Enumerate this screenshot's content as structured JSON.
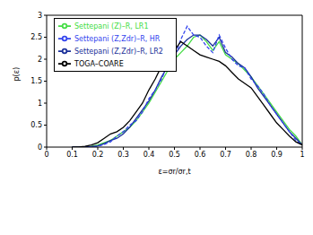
{
  "chart_data": {
    "type": "line",
    "x_label": "ε=σr/σr,t",
    "y_label": "p(ε)",
    "x": [
      0.1,
      0.125,
      0.15,
      0.175,
      0.2,
      0.225,
      0.25,
      0.275,
      0.3,
      0.325,
      0.35,
      0.375,
      0.4,
      0.425,
      0.45,
      0.475,
      0.5,
      0.525,
      0.55,
      0.575,
      0.6,
      0.625,
      0.65,
      0.675,
      0.7,
      0.725,
      0.75,
      0.775,
      0.8,
      0.825,
      0.85,
      0.875,
      0.9,
      0.925,
      0.95,
      0.975,
      1.0
    ],
    "series": [
      {
        "name": "Settepani (Z)–R, LR1",
        "color": "#44dd44",
        "line_style": "solid",
        "values": [
          0,
          0,
          0,
          0.02,
          0.05,
          0.1,
          0.15,
          0.25,
          0.35,
          0.45,
          0.6,
          0.8,
          1.0,
          1.25,
          1.5,
          1.75,
          2.0,
          2.15,
          2.3,
          2.5,
          2.55,
          2.4,
          2.2,
          2.4,
          2.1,
          2.0,
          1.9,
          1.75,
          1.6,
          1.4,
          1.2,
          1.0,
          0.8,
          0.6,
          0.4,
          0.25,
          0.05
        ]
      },
      {
        "name": "Settepani (Z,Zdr)–R, LR2",
        "color": "#1a2f99",
        "line_style": "solid",
        "values": [
          0,
          0,
          0,
          0.01,
          0.03,
          0.08,
          0.15,
          0.2,
          0.3,
          0.45,
          0.65,
          0.85,
          1.05,
          1.3,
          1.6,
          1.85,
          2.1,
          2.3,
          2.45,
          2.55,
          2.55,
          2.45,
          2.3,
          2.5,
          2.15,
          2.05,
          1.9,
          1.8,
          1.6,
          1.35,
          1.15,
          0.95,
          0.75,
          0.55,
          0.35,
          0.2,
          0.05
        ]
      },
      {
        "name": "Settepani (Z,Zdr)–R, HR",
        "color": "#3344ee",
        "line_style": "dashed",
        "values": [
          0,
          0,
          0,
          0,
          0.02,
          0.06,
          0.12,
          0.25,
          0.35,
          0.5,
          0.6,
          0.8,
          1.1,
          1.3,
          1.55,
          1.9,
          2.05,
          2.45,
          2.75,
          2.55,
          2.5,
          2.3,
          2.15,
          2.55,
          2.25,
          2.0,
          1.85,
          1.8,
          1.55,
          1.4,
          1.2,
          0.95,
          0.75,
          0.55,
          0.35,
          0.15,
          0.05
        ]
      },
      {
        "name": "TOGA–COARE",
        "color": "#000000",
        "line_style": "solid",
        "values": [
          0,
          0,
          0.02,
          0.05,
          0.1,
          0.2,
          0.3,
          0.35,
          0.45,
          0.6,
          0.8,
          1.0,
          1.3,
          1.55,
          1.85,
          2.05,
          2.2,
          2.4,
          2.3,
          2.2,
          2.1,
          2.05,
          2.0,
          1.95,
          1.85,
          1.7,
          1.55,
          1.45,
          1.35,
          1.15,
          0.95,
          0.75,
          0.55,
          0.4,
          0.25,
          0.12,
          0.05
        ]
      }
    ],
    "xlim": [
      0,
      1
    ],
    "xticks": [
      0,
      0.1,
      0.2,
      0.3,
      0.4,
      0.5,
      0.6,
      0.7,
      0.8,
      0.9,
      1
    ],
    "ylim": [
      0,
      3
    ],
    "yticks": [
      0,
      0.5,
      1,
      1.5,
      2,
      2.5,
      3
    ],
    "legend": "upper left",
    "grid": false
  }
}
